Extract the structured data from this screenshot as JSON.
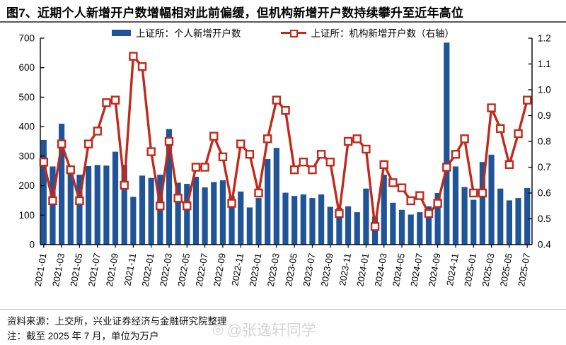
{
  "title": "图7、近期个人新增开户数增幅相对此前偏缓，但机构新增开户数持续攀升至近年高位",
  "legend": {
    "bar_label": "上证所：个人新增开户数",
    "line_label": "上证所：机构新增开户数（右轴）"
  },
  "footer": {
    "source": "资料来源：上交所，兴业证券经济与金融研究院整理",
    "note": "注：截至 2025 年 7 月，单位为万户"
  },
  "watermark": "@张逸轩同学",
  "colors": {
    "bar": "#1F5499",
    "line": "#C02A1C",
    "marker_fill": "#FFFFFF",
    "axis": "#000000"
  },
  "chart_data": {
    "type": "bar+line",
    "title": "",
    "x": [
      "2021-01",
      "2021-02",
      "2021-03",
      "2021-04",
      "2021-05",
      "2021-06",
      "2021-07",
      "2021-08",
      "2021-09",
      "2021-10",
      "2021-11",
      "2021-12",
      "2022-01",
      "2022-02",
      "2022-03",
      "2022-04",
      "2022-05",
      "2022-06",
      "2022-07",
      "2022-08",
      "2022-09",
      "2022-10",
      "2022-11",
      "2022-12",
      "2023-01",
      "2023-02",
      "2023-03",
      "2023-04",
      "2023-05",
      "2023-06",
      "2023-07",
      "2023-08",
      "2023-09",
      "2023-10",
      "2023-11",
      "2023-12",
      "2024-01",
      "2024-02",
      "2024-03",
      "2024-04",
      "2024-05",
      "2024-06",
      "2024-07",
      "2024-08",
      "2024-09",
      "2024-10",
      "2024-11",
      "2024-12",
      "2025-01",
      "2025-02",
      "2025-03",
      "2025-04",
      "2025-05",
      "2025-06",
      "2025-07"
    ],
    "x_tick_labels": [
      "2021-01",
      "2021-03",
      "2021-05",
      "2021-07",
      "2021-09",
      "2021-11",
      "2022-01",
      "2022-03",
      "2022-05",
      "2022-07",
      "2022-09",
      "2022-11",
      "2023-01",
      "2023-03",
      "2023-05",
      "2023-07",
      "2023-09",
      "2023-11",
      "2024-01",
      "2024-03",
      "2024-05",
      "2024-07",
      "2024-09",
      "2024-11",
      "2025-01",
      "2025-03",
      "2025-05",
      "2025-07"
    ],
    "left_axis": {
      "min": 0,
      "max": 700,
      "step": 100,
      "ticks": [
        "0",
        "100",
        "200",
        "300",
        "400",
        "500",
        "600",
        "700"
      ]
    },
    "right_axis": {
      "min": 0.4,
      "max": 1.2,
      "step": 0.1,
      "ticks": [
        "0.4",
        "0.5",
        "0.6",
        "0.7",
        "0.8",
        "0.9",
        "1.0",
        "1.1",
        "1.2"
      ]
    },
    "grid": false,
    "legend_position": "top",
    "series": [
      {
        "name": "上证所：个人新增开户数",
        "type": "bar",
        "axis": "left",
        "values": [
          355,
          265,
          410,
          267,
          237,
          266,
          270,
          268,
          315,
          270,
          162,
          234,
          226,
          237,
          392,
          210,
          206,
          230,
          194,
          212,
          218,
          165,
          180,
          126,
          158,
          290,
          328,
          176,
          165,
          170,
          158,
          170,
          128,
          125,
          130,
          110,
          190,
          95,
          237,
          142,
          118,
          102,
          110,
          130,
          175,
          685,
          265,
          195,
          152,
          280,
          305,
          190,
          150,
          158,
          192
        ]
      },
      {
        "name": "上证所：机构新增开户数（右轴）",
        "type": "line",
        "axis": "right",
        "values": [
          0.72,
          0.57,
          0.79,
          0.69,
          0.57,
          0.79,
          0.84,
          0.95,
          0.96,
          0.63,
          1.13,
          1.09,
          0.76,
          0.55,
          0.8,
          0.58,
          0.55,
          0.7,
          0.7,
          0.82,
          0.74,
          0.56,
          0.79,
          0.75,
          0.6,
          0.81,
          0.96,
          0.92,
          0.69,
          0.72,
          0.69,
          0.75,
          0.72,
          0.52,
          0.8,
          0.81,
          0.77,
          0.47,
          0.71,
          0.64,
          0.62,
          0.57,
          0.59,
          0.52,
          0.56,
          0.7,
          0.75,
          0.81,
          0.6,
          0.6,
          0.93,
          0.85,
          0.71,
          0.83,
          0.96
        ]
      }
    ]
  }
}
